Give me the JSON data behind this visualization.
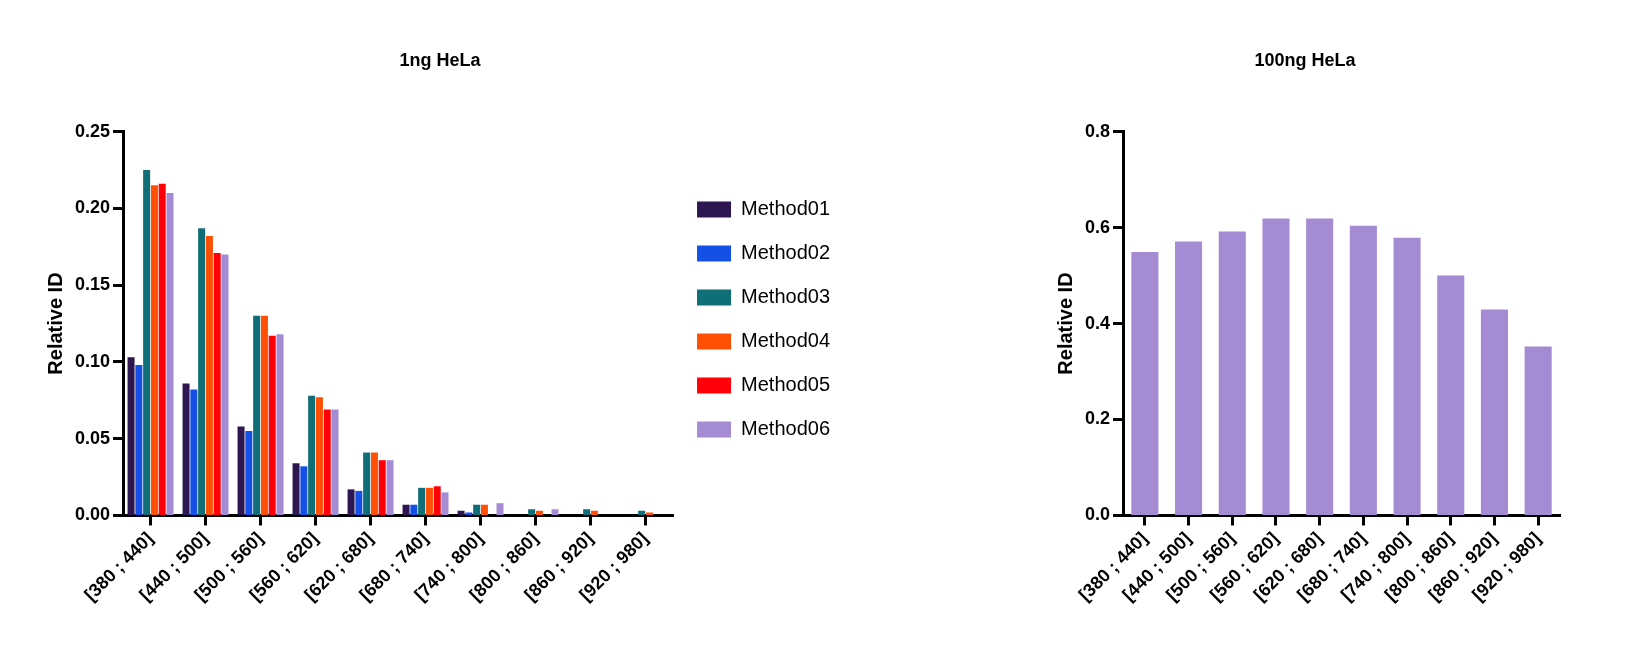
{
  "chart_data": [
    {
      "type": "bar",
      "title": "1ng HeLa",
      "ylabel": "Relative ID",
      "categories": [
        "[380 ; 440]",
        "[440 ; 500]",
        "[500 ; 560]",
        "[560 ; 620]",
        "[620 ; 680]",
        "[680 ; 740]",
        "[740 ; 800]",
        "[800 ; 860]",
        "[860 ; 920]",
        "[920 ; 980]"
      ],
      "series": [
        {
          "name": "Method01",
          "color": "#2e1650",
          "values": [
            0.103,
            0.086,
            0.058,
            0.034,
            0.017,
            0.007,
            0.003,
            0,
            0,
            0
          ]
        },
        {
          "name": "Method02",
          "color": "#1450e6",
          "values": [
            0.098,
            0.082,
            0.055,
            0.032,
            0.016,
            0.007,
            0.002,
            0,
            0,
            0
          ]
        },
        {
          "name": "Method03",
          "color": "#0f6e78",
          "values": [
            0.225,
            0.187,
            0.13,
            0.078,
            0.041,
            0.018,
            0.007,
            0.004,
            0.004,
            0.003
          ]
        },
        {
          "name": "Method04",
          "color": "#ff5005",
          "values": [
            0.215,
            0.182,
            0.13,
            0.077,
            0.041,
            0.018,
            0.007,
            0.003,
            0.003,
            0.002
          ]
        },
        {
          "name": "Method05",
          "color": "#ff0008",
          "values": [
            0.216,
            0.171,
            0.117,
            0.069,
            0.036,
            0.019,
            0,
            0,
            0,
            0
          ]
        },
        {
          "name": "Method06",
          "color": "#a58bd4",
          "values": [
            0.21,
            0.17,
            0.118,
            0.069,
            0.036,
            0.015,
            0.008,
            0.004,
            0,
            0
          ]
        }
      ],
      "ylim": [
        0,
        0.25
      ],
      "yticks": [
        {
          "value": 0,
          "label": "0.00"
        },
        {
          "value": 0.05,
          "label": "0.05"
        },
        {
          "value": 0.1,
          "label": "0.10"
        },
        {
          "value": 0.15,
          "label": "0.15"
        },
        {
          "value": 0.2,
          "label": "0.20"
        },
        {
          "value": 0.25,
          "label": "0.25"
        }
      ],
      "grid": false,
      "legend": "right"
    },
    {
      "type": "bar",
      "title": "100ng HeLa",
      "ylabel": "Relative ID",
      "categories": [
        "[380 ; 440]",
        "[440 ; 500]",
        "[500 ; 560]",
        "[560 ; 620]",
        "[620 ; 680]",
        "[680 ; 740]",
        "[740 ; 800]",
        "[800 ; 860]",
        "[860 ; 920]",
        "[920 ; 980]"
      ],
      "values": [
        0.549,
        0.571,
        0.592,
        0.619,
        0.619,
        0.604,
        0.579,
        0.5,
        0.429,
        0.352
      ],
      "color": "#a58bd4",
      "ylim": [
        0,
        0.8
      ],
      "yticks": [
        {
          "value": 0,
          "label": "0.0"
        },
        {
          "value": 0.2,
          "label": "0.2"
        },
        {
          "value": 0.4,
          "label": "0.4"
        },
        {
          "value": 0.6,
          "label": "0.6"
        },
        {
          "value": 0.8,
          "label": "0.8"
        }
      ],
      "grid": false,
      "legend": false
    }
  ]
}
